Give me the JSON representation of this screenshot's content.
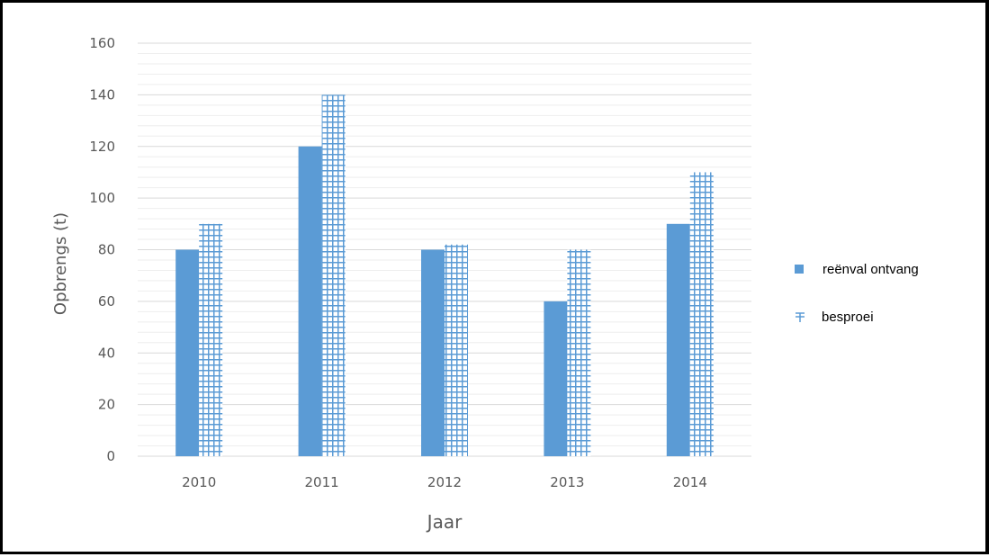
{
  "chart_data": {
    "type": "bar",
    "categories": [
      "2010",
      "2011",
      "2012",
      "2013",
      "2014"
    ],
    "series": [
      {
        "name": "reënval ontvang",
        "values": [
          80,
          120,
          80,
          60,
          90
        ],
        "pattern": "solid"
      },
      {
        "name": "besproei",
        "values": [
          90,
          140,
          82,
          80,
          110
        ],
        "pattern": "grid"
      }
    ],
    "title": "",
    "xlabel": "Jaar",
    "ylabel": "Opbrengs (t)",
    "ylim": [
      0,
      160
    ],
    "yticks": [
      0,
      20,
      40,
      60,
      80,
      100,
      120,
      140,
      160
    ],
    "grid": true,
    "legend_position": "right"
  },
  "colors": {
    "bar_fill": "#5b9bd5",
    "grid_major": "#d9d9d9",
    "grid_minor": "#eeeeee",
    "tick_text": "#595959",
    "legend_text": "#000000",
    "frame": "#000000"
  }
}
